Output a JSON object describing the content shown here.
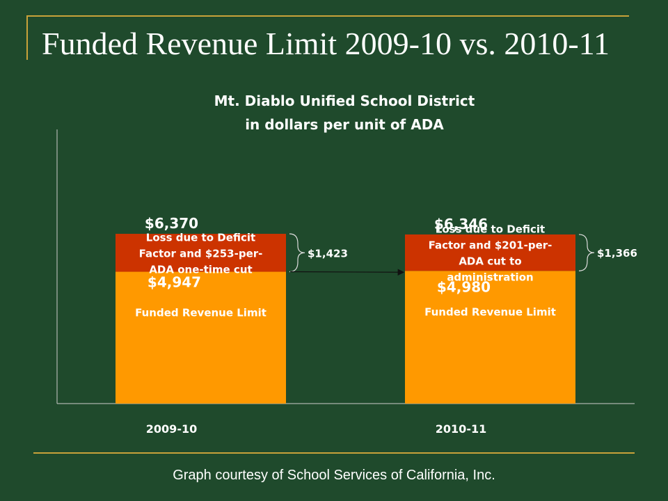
{
  "slide": {
    "title": "Funded Revenue Limit 2009-10 vs. 2010-11",
    "credit": "Graph courtesy of School Services of California, Inc."
  },
  "colors": {
    "background": "#1f4a2c",
    "accent_rule": "#c9a23a",
    "funded": "#ff9900",
    "loss": "#cc3300",
    "text": "#ffffff"
  },
  "chart_data": {
    "type": "bar",
    "stacked": true,
    "title": [
      "Mt. Diablo Unified School District",
      "in dollars per unit of ADA"
    ],
    "categories": [
      "2009-10",
      "2010-11"
    ],
    "series": [
      {
        "key": "funded",
        "values": [
          4947,
          4980
        ],
        "value_labels": [
          "$4,947",
          "$4,980"
        ],
        "inner_label": "Funded Revenue Limit"
      },
      {
        "key": "loss",
        "values": [
          1423,
          1366
        ],
        "inner_labels": [
          [
            "Loss due to Deficit",
            "Factor and $253-per-",
            "ADA one-time cut"
          ],
          [
            "Loss due to Deficit",
            "Factor and $201-per-",
            "ADA cut to",
            "administration"
          ]
        ]
      }
    ],
    "totals": [
      6370,
      6346
    ],
    "total_labels": [
      "$6,370",
      "$6,346"
    ],
    "brace_labels": [
      "$1,423",
      "$1,366"
    ],
    "ylim": [
      0,
      8000
    ],
    "grid": false,
    "legend": "none"
  }
}
